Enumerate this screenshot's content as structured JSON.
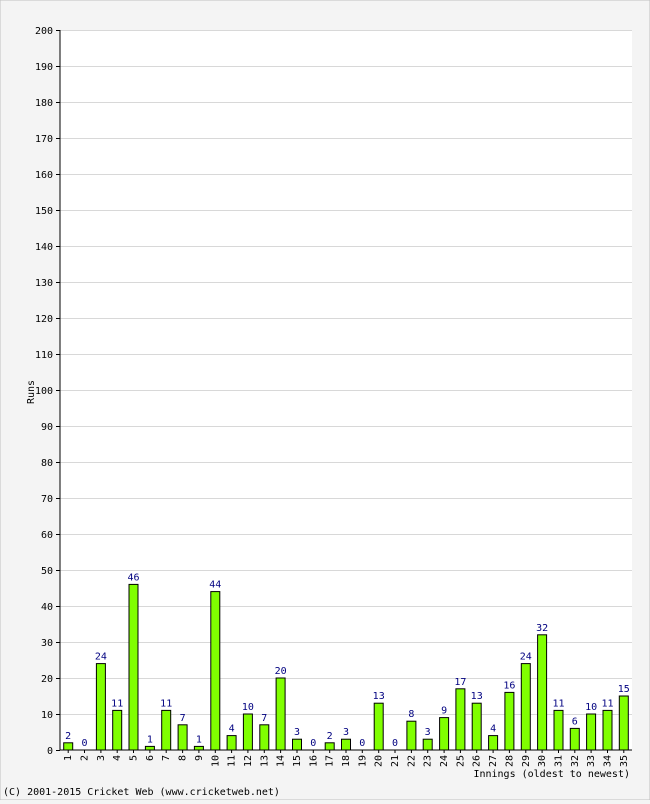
{
  "chart_data": {
    "type": "bar",
    "categories": [
      "1",
      "2",
      "3",
      "4",
      "5",
      "6",
      "7",
      "8",
      "9",
      "10",
      "11",
      "12",
      "13",
      "14",
      "15",
      "16",
      "17",
      "18",
      "19",
      "20",
      "21",
      "22",
      "23",
      "24",
      "25",
      "26",
      "27",
      "28",
      "29",
      "30",
      "31",
      "32",
      "33",
      "34",
      "35"
    ],
    "values": [
      2,
      0,
      24,
      11,
      46,
      1,
      11,
      7,
      1,
      44,
      4,
      10,
      7,
      20,
      3,
      0,
      2,
      3,
      0,
      13,
      0,
      8,
      3,
      9,
      17,
      13,
      4,
      16,
      24,
      32,
      11,
      6,
      10,
      11,
      15
    ],
    "ylabel": "Runs",
    "xlabel": "Innings (oldest to newest)",
    "ylim": [
      0,
      200
    ],
    "yticks": [
      0,
      10,
      20,
      30,
      40,
      50,
      60,
      70,
      80,
      90,
      100,
      110,
      120,
      130,
      140,
      150,
      160,
      170,
      180,
      190,
      200
    ],
    "grid": true,
    "colors": {
      "bar_fill": "#80ff00",
      "bar_stroke": "#000000",
      "value_label": "#000080",
      "grid": "#d8d8d8",
      "plot_bg": "#ffffff",
      "page_bg": "#f4f4f4"
    }
  },
  "footer": {
    "copyright": "(C) 2001-2015 Cricket Web (www.cricketweb.net)"
  }
}
